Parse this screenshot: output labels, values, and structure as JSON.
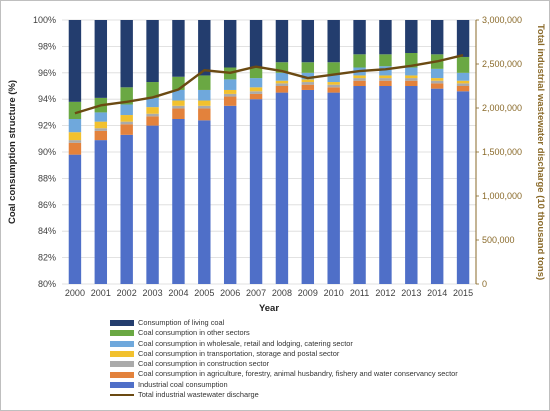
{
  "chart_data": {
    "type": "bar",
    "stacked": true,
    "categories": [
      "2000",
      "2001",
      "2002",
      "2003",
      "2004",
      "2005",
      "2006",
      "2007",
      "2008",
      "2009",
      "2010",
      "2011",
      "2012",
      "2013",
      "2014",
      "2015"
    ],
    "xlabel": "Year",
    "ylabel": "Coal consumption structure (%)",
    "y2label": "Total industrial wastewater discharge (10 thousand tons)",
    "ylim": [
      80,
      100
    ],
    "yticks": [
      "80%",
      "82%",
      "84%",
      "86%",
      "88%",
      "90%",
      "92%",
      "94%",
      "96%",
      "98%",
      "100%"
    ],
    "y2lim": [
      0,
      3000000
    ],
    "y2ticks": [
      "0",
      "500,000",
      "1,000,000",
      "1,500,000",
      "2,000,000",
      "2,500,000",
      "3,000,000"
    ],
    "series": [
      {
        "name": "Industrial coal consumption",
        "color": "#4f6fc8",
        "values": [
          89.8,
          90.9,
          91.3,
          92.0,
          92.5,
          92.4,
          93.5,
          94.0,
          94.5,
          94.7,
          94.5,
          95.0,
          95.0,
          95.0,
          94.8,
          94.6
        ]
      },
      {
        "name": "Coal consumption in agriculture, forestry, animal husbandry, fishery and water conservancy sector",
        "color": "#e3823c",
        "values": [
          0.9,
          0.7,
          0.8,
          0.7,
          0.8,
          0.9,
          0.7,
          0.4,
          0.5,
          0.4,
          0.4,
          0.4,
          0.4,
          0.4,
          0.4,
          0.4
        ]
      },
      {
        "name": "Coal consumption in construction sector",
        "color": "#aaaaaa",
        "values": [
          0.2,
          0.2,
          0.2,
          0.2,
          0.2,
          0.2,
          0.2,
          0.2,
          0.2,
          0.2,
          0.2,
          0.2,
          0.2,
          0.2,
          0.2,
          0.2
        ]
      },
      {
        "name": "Coal consumption in transportation, storage and postal sector",
        "color": "#f2c12e",
        "values": [
          0.6,
          0.5,
          0.5,
          0.5,
          0.4,
          0.4,
          0.3,
          0.3,
          0.2,
          0.2,
          0.2,
          0.2,
          0.2,
          0.2,
          0.2,
          0.2
        ]
      },
      {
        "name": "Coal consumption in wholesale, retail and lodging, catering sector",
        "color": "#6fa8dc",
        "values": [
          1.0,
          0.7,
          0.8,
          0.7,
          0.8,
          0.8,
          0.8,
          0.7,
          0.6,
          0.5,
          0.6,
          0.6,
          0.7,
          0.6,
          0.7,
          0.6
        ]
      },
      {
        "name": "Coal consumption in other sectors",
        "color": "#6aa843",
        "values": [
          1.3,
          1.1,
          1.3,
          1.2,
          1.0,
          1.1,
          0.9,
          0.8,
          0.8,
          0.8,
          0.9,
          1.0,
          0.9,
          1.1,
          1.1,
          1.2
        ]
      },
      {
        "name": "Consumption of living coal",
        "color": "#233d6e",
        "values": [
          6.2,
          5.9,
          5.1,
          4.7,
          4.3,
          4.2,
          3.6,
          3.6,
          3.2,
          3.2,
          3.2,
          2.6,
          2.6,
          2.5,
          2.6,
          2.8
        ]
      }
    ],
    "line_series": {
      "name": "Total industrial wastewater discharge",
      "color": "#6b4a12",
      "axis": "right",
      "values": [
        1940000,
        2030000,
        2070000,
        2120000,
        2210000,
        2430000,
        2400000,
        2470000,
        2420000,
        2340000,
        2380000,
        2420000,
        2440000,
        2480000,
        2530000,
        2600000
      ]
    },
    "legend": [
      {
        "label": "Consumption of living coal",
        "color": "#233d6e",
        "kind": "bar"
      },
      {
        "label": "Coal consumption in other sectors",
        "color": "#6aa843",
        "kind": "bar"
      },
      {
        "label": "Coal consumption in wholesale, retail and lodging, catering sector",
        "color": "#6fa8dc",
        "kind": "bar"
      },
      {
        "label": "Coal consumption in transportation, storage and postal sector",
        "color": "#f2c12e",
        "kind": "bar"
      },
      {
        "label": "Coal consumption in construction sector",
        "color": "#aaaaaa",
        "kind": "bar"
      },
      {
        "label": "Coal consumption in agriculture, forestry, animal husbandry, fishery and water conservancy sector",
        "color": "#e3823c",
        "kind": "bar"
      },
      {
        "label": "Industrial coal consumption",
        "color": "#4f6fc8",
        "kind": "bar"
      },
      {
        "label": "Total industrial wastewater discharge",
        "color": "#6b4a12",
        "kind": "line"
      }
    ],
    "legend_position": "bottom"
  }
}
